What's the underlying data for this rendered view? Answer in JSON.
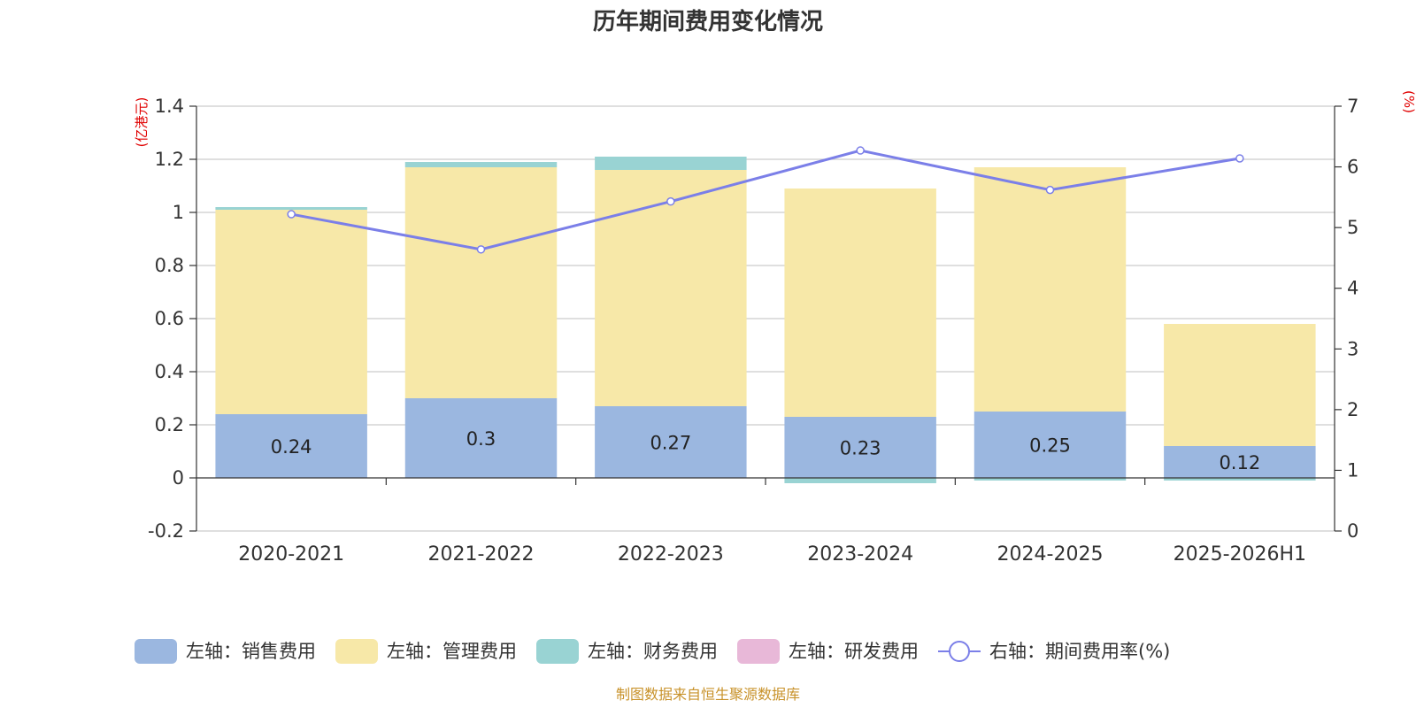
{
  "chart_data": {
    "type": "bar",
    "title": "历年期间费用变化情况",
    "categories": [
      "2020-2021",
      "2021-2022",
      "2022-2023",
      "2023-2024",
      "2024-2025",
      "2025-2026H1"
    ],
    "left_axis": {
      "unit_label": "(亿港元)",
      "ylim": [
        -0.2,
        1.4
      ],
      "ticks": [
        -0.2,
        0,
        0.2,
        0.4,
        0.6,
        0.8,
        1,
        1.2,
        1.4
      ],
      "tick_labels": [
        "-0.2",
        "0",
        "0.2",
        "0.4",
        "0.6",
        "0.8",
        "1",
        "1.2",
        "1.4"
      ]
    },
    "right_axis": {
      "unit_label": "(%)",
      "ylim": [
        0,
        7
      ],
      "ticks": [
        0,
        1,
        2,
        3,
        4,
        5,
        6,
        7
      ],
      "tick_labels": [
        "0",
        "1",
        "2",
        "3",
        "4",
        "5",
        "6",
        "7"
      ]
    },
    "series": [
      {
        "name": "左轴：销售费用",
        "axis": "left",
        "kind": "bar",
        "color": "#9bb7e0",
        "values": [
          0.24,
          0.3,
          0.27,
          0.23,
          0.25,
          0.12
        ],
        "labels": [
          "0.24",
          "0.3",
          "0.27",
          "0.23",
          "0.25",
          "0.12"
        ]
      },
      {
        "name": "左轴：管理费用",
        "axis": "left",
        "kind": "bar",
        "color": "#f7e8a8",
        "values": [
          0.77,
          0.87,
          0.89,
          0.86,
          0.92,
          0.46
        ]
      },
      {
        "name": "左轴：财务费用",
        "axis": "left",
        "kind": "bar",
        "color": "#99d3d3",
        "values": [
          0.01,
          0.02,
          0.05,
          -0.02,
          -0.01,
          -0.01
        ]
      },
      {
        "name": "左轴：研发费用",
        "axis": "left",
        "kind": "bar",
        "color": "#e8b8d8",
        "values": [
          0,
          0,
          0,
          0,
          0,
          0
        ]
      },
      {
        "name": "右轴：期间费用率(%)",
        "axis": "right",
        "kind": "line",
        "color": "#7b7fe8",
        "values": [
          5.22,
          4.64,
          5.43,
          6.27,
          5.62,
          6.14
        ]
      }
    ],
    "grid": true,
    "legend_position": "bottom"
  },
  "source_note": "制图数据来自恒生聚源数据库"
}
